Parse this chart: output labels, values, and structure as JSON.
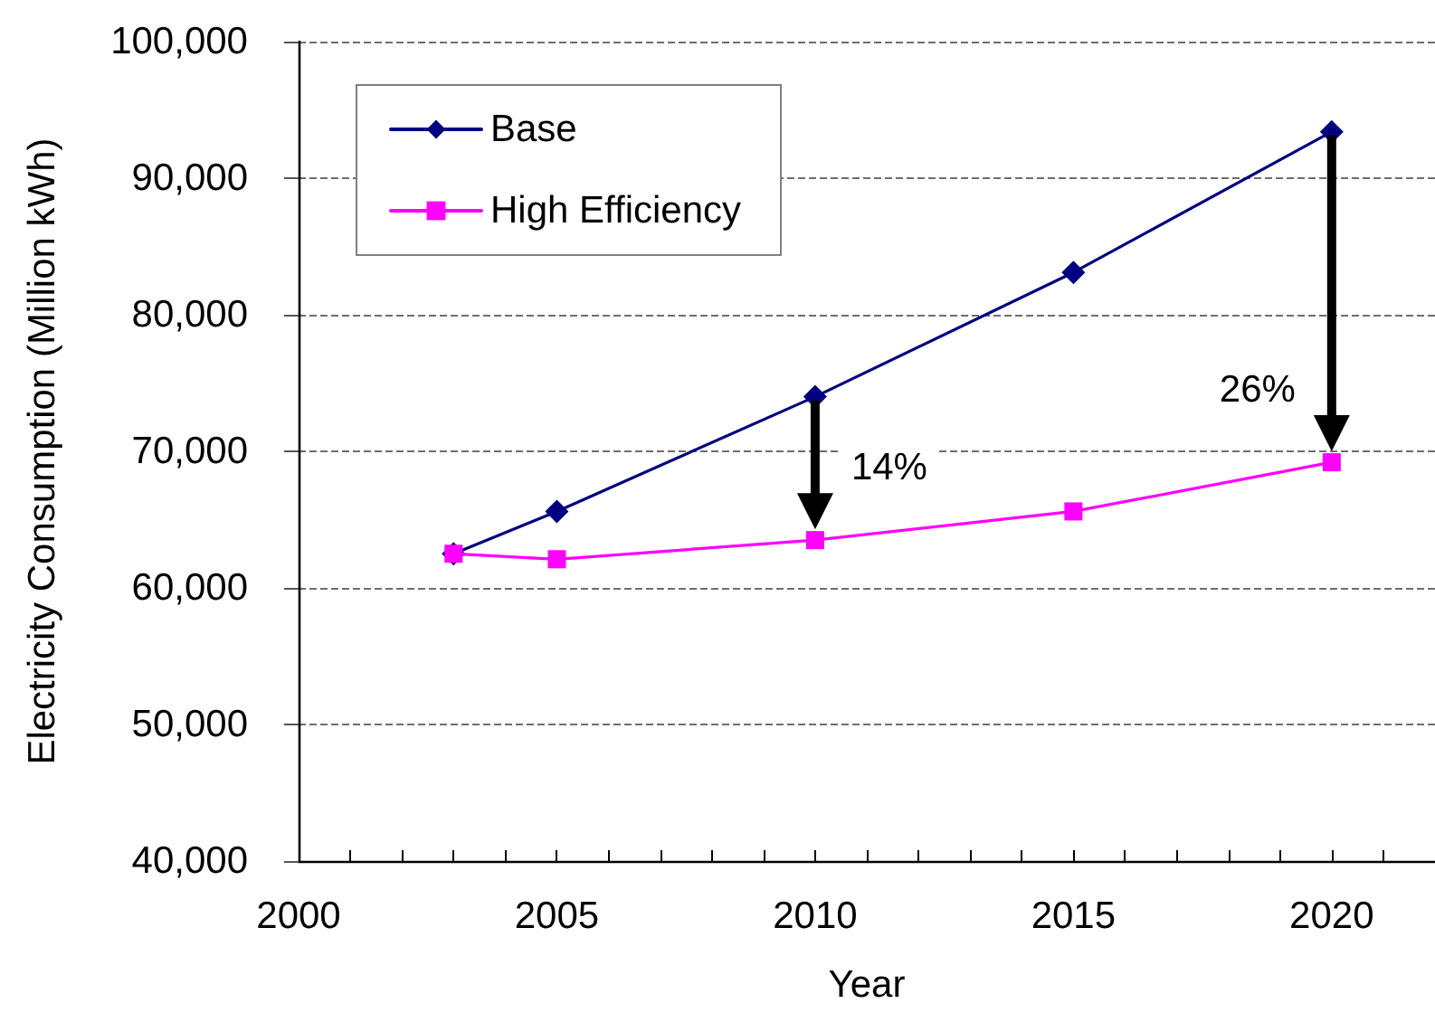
{
  "chart_data": {
    "type": "line",
    "xlabel": "Year",
    "ylabel": "Electricity Consumption (Million kWh)",
    "x": [
      2003,
      2005,
      2010,
      2015,
      2020
    ],
    "series": [
      {
        "name": "Base",
        "color": "#000080",
        "marker": "diamond",
        "values": [
          62500,
          65600,
          74000,
          83100,
          93400
        ]
      },
      {
        "name": "High Efficiency",
        "color": "#ff00ff",
        "marker": "square",
        "values": [
          62500,
          62100,
          63500,
          65600,
          69200
        ]
      }
    ],
    "xlim": [
      2000,
      2022
    ],
    "xticks": [
      2000,
      {
        "value": 2001,
        "label": null
      },
      {
        "value": 2002,
        "label": null
      },
      {
        "value": 2003,
        "label": null
      },
      {
        "value": 2004,
        "label": null
      },
      2005,
      {
        "value": 2006,
        "label": null
      },
      {
        "value": 2007,
        "label": null
      },
      {
        "value": 2008,
        "label": null
      },
      {
        "value": 2009,
        "label": null
      },
      2010,
      {
        "value": 2011,
        "label": null
      },
      {
        "value": 2012,
        "label": null
      },
      {
        "value": 2013,
        "label": null
      },
      {
        "value": 2014,
        "label": null
      },
      2015,
      {
        "value": 2016,
        "label": null
      },
      {
        "value": 2017,
        "label": null
      },
      {
        "value": 2018,
        "label": null
      },
      {
        "value": 2019,
        "label": null
      },
      2020,
      {
        "value": 2021,
        "label": null
      }
    ],
    "ylim": [
      40000,
      100000
    ],
    "yticks": [
      {
        "value": 40000,
        "label": "40,000"
      },
      {
        "value": 50000,
        "label": "50,000"
      },
      {
        "value": 60000,
        "label": "60,000"
      },
      {
        "value": 70000,
        "label": "70,000"
      },
      {
        "value": 80000,
        "label": "80,000"
      },
      {
        "value": 90000,
        "label": "90,000"
      },
      {
        "value": 100000,
        "label": "100,000"
      }
    ],
    "grid": "y",
    "legend": "top left",
    "line_style": "solid",
    "annotations": [
      {
        "text": "14%",
        "x": 2010,
        "y": 63500
      },
      {
        "text": "26%",
        "x": 2020,
        "y": 69200
      }
    ]
  }
}
